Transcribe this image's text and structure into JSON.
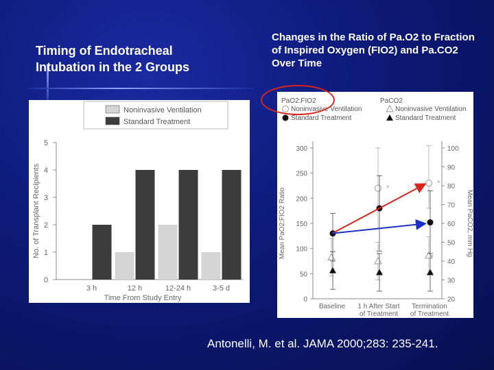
{
  "slide": {
    "left_title": "Timing of Endotracheal Intubation in the 2 Groups",
    "right_title": "Changes in the Ratio of Pa.O2 to Fraction of Inspired Oxygen (FIO2) and Pa.CO2 Over Time",
    "citation": "Antonelli, M. et al. JAMA 2000;283: 235-241."
  },
  "chart_data": [
    {
      "type": "bar",
      "categories": [
        "3 h",
        "12 h",
        "12-24 h",
        "3-5 d"
      ],
      "series": [
        {
          "name": "Noninvasive Ventilation",
          "values": [
            0,
            1,
            2,
            1
          ],
          "color": "#d4d4d4"
        },
        {
          "name": "Standard Treatment",
          "values": [
            2,
            4,
            4,
            4
          ],
          "color": "#3c3c3c"
        }
      ],
      "xlabel": "Time From Study Entry",
      "ylabel": "No. of Transplant Recipients",
      "ylim": [
        0,
        5
      ],
      "yticks": [
        0,
        1,
        2,
        3,
        4,
        5
      ],
      "legend": "top"
    },
    {
      "type": "line",
      "categories": [
        "Baseline",
        "1 h After Start of Treatment",
        "Termination of Treatment"
      ],
      "category_lines": [
        [
          "Baseline"
        ],
        [
          "1 h After Start",
          "of Treatment"
        ],
        [
          "Termination",
          "of Treatment"
        ]
      ],
      "legend_headers": [
        "PaO2:FIO2",
        "PaCO2"
      ],
      "series": [
        {
          "name": "Noninvasive Ventilation",
          "group": "PaO2:FIO2",
          "marker": "open-circle",
          "axis": "left",
          "values": [
            null,
            220,
            230
          ],
          "err_low": [
            null,
            140,
            180
          ],
          "err_high": [
            null,
            300,
            305
          ],
          "star": [
            false,
            true,
            true
          ]
        },
        {
          "name": "Standard Treatment",
          "group": "PaO2:FIO2",
          "marker": "filled-circle",
          "axis": "left",
          "values": [
            130,
            180,
            152
          ],
          "err_low": [
            75,
            95,
            85
          ],
          "err_high": [
            170,
            245,
            215
          ],
          "star": [
            false,
            false,
            false
          ]
        },
        {
          "name": "Noninvasive Ventilation",
          "group": "PaCO2",
          "marker": "open-triangle",
          "axis": "right",
          "values": [
            42,
            40,
            43
          ],
          "err_low": [
            32,
            30,
            33
          ],
          "err_high": [
            52,
            50,
            53
          ],
          "star": [
            false,
            false,
            false
          ]
        },
        {
          "name": "Standard Treatment",
          "group": "PaCO2",
          "marker": "filled-triangle",
          "axis": "right",
          "values": [
            35,
            34,
            34
          ],
          "err_low": [
            25,
            24,
            24
          ],
          "err_high": [
            45,
            44,
            44
          ],
          "star": [
            false,
            false,
            false
          ]
        }
      ],
      "ylabel": "Mean PaO2:FIO2 Ratio",
      "y2label": "Mean PaCO2, mm Hg",
      "ylim": [
        0,
        300
      ],
      "yticks": [
        0,
        50,
        100,
        150,
        200,
        250,
        300
      ],
      "y2lim": [
        20,
        100
      ],
      "y2ticks": [
        20,
        30,
        40,
        50,
        60,
        70,
        80,
        90,
        100
      ],
      "star_label": "*",
      "annotation_arrows": [
        {
          "from": [
            0,
            130
          ],
          "to": [
            2,
            230
          ],
          "color": "#d9261c"
        },
        {
          "from": [
            0,
            130
          ],
          "to": [
            2,
            152
          ],
          "color": "#1a2ec8"
        }
      ]
    }
  ]
}
